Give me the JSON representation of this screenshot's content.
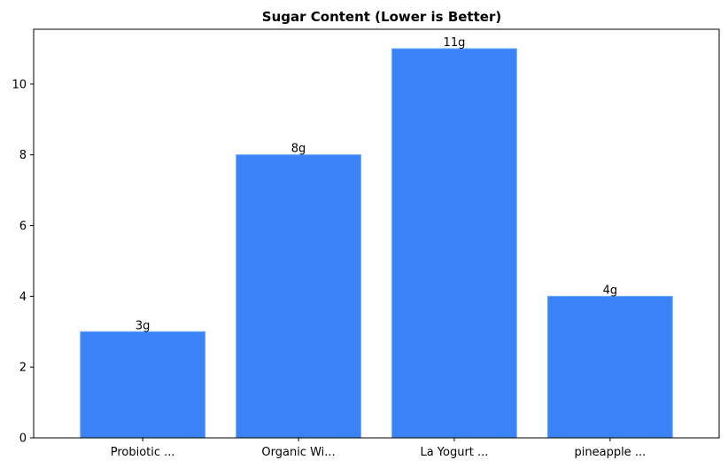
{
  "chart_data": {
    "type": "bar",
    "title": "Sugar Content (Lower is Better)",
    "xlabel": "",
    "ylabel": "",
    "categories": [
      "Probiotic ...",
      "Organic Wi...",
      "La Yogurt ...",
      "pineapple ..."
    ],
    "values": [
      3,
      8,
      11,
      4
    ],
    "data_labels": [
      "3g",
      "8g",
      "11g",
      "4g"
    ],
    "ylim": [
      0,
      11.55
    ],
    "yticks": [
      0,
      2,
      4,
      6,
      8,
      10
    ],
    "grid": false,
    "legend": "none",
    "bar_color": "#3b82f6",
    "bar_edge_color": "#60a5fa"
  }
}
